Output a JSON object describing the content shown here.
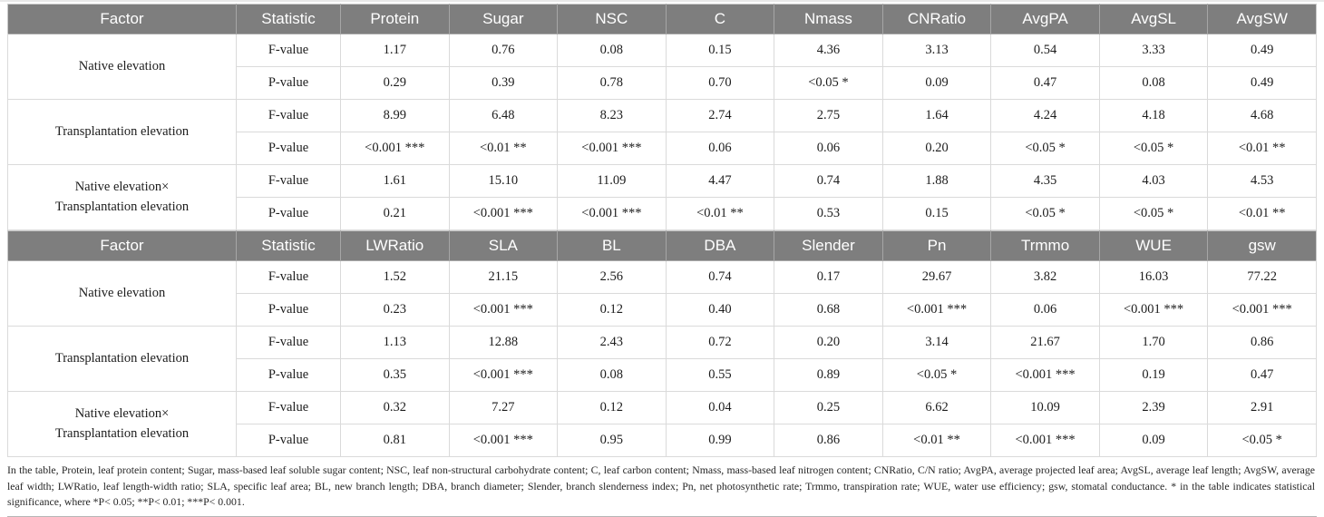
{
  "colors": {
    "header_bg": "#7e7e7e",
    "header_text": "#ffffff",
    "body_text": "#1c1c1c"
  },
  "tables": [
    {
      "headers": [
        "Factor",
        "Statistic",
        "Protein",
        "Sugar",
        "NSC",
        "C",
        "Nmass",
        "CNRatio",
        "AvgPA",
        "AvgSL",
        "AvgSW"
      ],
      "groups": [
        {
          "factor_lines": [
            "Native elevation"
          ],
          "rows": [
            {
              "label": "F-value",
              "values": [
                "1.17",
                "0.76",
                "0.08",
                "0.15",
                "4.36",
                "3.13",
                "0.54",
                "3.33",
                "0.49"
              ]
            },
            {
              "label": "P-value",
              "values": [
                "0.29",
                "0.39",
                "0.78",
                "0.70",
                "<0.05 *",
                "0.09",
                "0.47",
                "0.08",
                "0.49"
              ]
            }
          ]
        },
        {
          "factor_lines": [
            "Transplantation elevation"
          ],
          "rows": [
            {
              "label": "F-value",
              "values": [
                "8.99",
                "6.48",
                "8.23",
                "2.74",
                "2.75",
                "1.64",
                "4.24",
                "4.18",
                "4.68"
              ]
            },
            {
              "label": "P-value",
              "values": [
                "<0.001 ***",
                "<0.01 **",
                "<0.001 ***",
                "0.06",
                "0.06",
                "0.20",
                "<0.05 *",
                "<0.05 *",
                "<0.01 **"
              ]
            }
          ]
        },
        {
          "factor_lines": [
            "Native elevation×",
            "Transplantation elevation"
          ],
          "rows": [
            {
              "label": "F-value",
              "values": [
                "1.61",
                "15.10",
                "11.09",
                "4.47",
                "0.74",
                "1.88",
                "4.35",
                "4.03",
                "4.53"
              ]
            },
            {
              "label": "P-value",
              "values": [
                "0.21",
                "<0.001 ***",
                "<0.001 ***",
                "<0.01 **",
                "0.53",
                "0.15",
                "<0.05 *",
                "<0.05 *",
                "<0.01 **"
              ]
            }
          ]
        }
      ]
    },
    {
      "headers": [
        "Factor",
        "Statistic",
        "LWRatio",
        "SLA",
        "BL",
        "DBA",
        "Slender",
        "Pn",
        "Trmmo",
        "WUE",
        "gsw"
      ],
      "groups": [
        {
          "factor_lines": [
            "Native elevation"
          ],
          "rows": [
            {
              "label": "F-value",
              "values": [
                "1.52",
                "21.15",
                "2.56",
                "0.74",
                "0.17",
                "29.67",
                "3.82",
                "16.03",
                "77.22"
              ]
            },
            {
              "label": "P-value",
              "values": [
                "0.23",
                "<0.001 ***",
                "0.12",
                "0.40",
                "0.68",
                "<0.001 ***",
                "0.06",
                "<0.001 ***",
                "<0.001 ***"
              ]
            }
          ]
        },
        {
          "factor_lines": [
            "Transplantation elevation"
          ],
          "rows": [
            {
              "label": "F-value",
              "values": [
                "1.13",
                "12.88",
                "2.43",
                "0.72",
                "0.20",
                "3.14",
                "21.67",
                "1.70",
                "0.86"
              ]
            },
            {
              "label": "P-value",
              "values": [
                "0.35",
                "<0.001 ***",
                "0.08",
                "0.55",
                "0.89",
                "<0.05 *",
                "<0.001 ***",
                "0.19",
                "0.47"
              ]
            }
          ]
        },
        {
          "factor_lines": [
            "Native elevation×",
            "Transplantation elevation"
          ],
          "rows": [
            {
              "label": "F-value",
              "values": [
                "0.32",
                "7.27",
                "0.12",
                "0.04",
                "0.25",
                "6.62",
                "10.09",
                "2.39",
                "2.91"
              ]
            },
            {
              "label": "P-value",
              "values": [
                "0.81",
                "<0.001 ***",
                "0.95",
                "0.99",
                "0.86",
                "<0.01 **",
                "<0.001 ***",
                "0.09",
                "<0.05 *"
              ]
            }
          ]
        }
      ]
    }
  ],
  "footnote": "In the table, Protein, leaf protein content; Sugar, mass-based leaf soluble sugar content; NSC, leaf non-structural carbohydrate content; C, leaf carbon content; Nmass, mass-based leaf nitrogen content; CNRatio, C/N ratio; AvgPA, average projected leaf area; AvgSL, average leaf length; AvgSW, average leaf width; LWRatio, leaf length-width ratio; SLA, specific leaf area; BL, new branch length; DBA, branch diameter; Slender, branch slenderness index; Pn, net photosynthetic rate; Trmmo, transpiration rate; WUE, water use efficiency; gsw, stomatal conductance. * in the table indicates statistical significance, where *P< 0.05; **P< 0.01; ***P< 0.001."
}
